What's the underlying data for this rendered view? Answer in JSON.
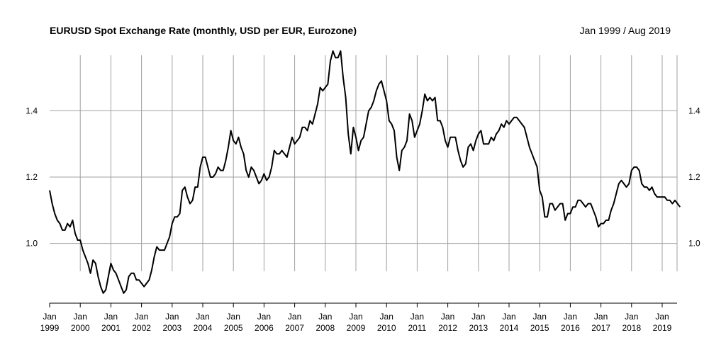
{
  "header": {
    "title": "EURUSD Spot Exchange Rate (monthly, USD per EUR, Eurozone)",
    "date_range": "Jan 1999 / Aug 2019"
  },
  "chart_data": {
    "type": "line",
    "title": "EURUSD Spot Exchange Rate (monthly, USD per EUR, Eurozone)",
    "subtitle": "Jan 1999 / Aug 2019",
    "xlabel": "",
    "ylabel": "",
    "start": "1999-01",
    "ylim": [
      0.82,
      1.58
    ],
    "y_ticks": [
      1.0,
      1.2,
      1.4
    ],
    "y_tick_labels": [
      "1.0",
      "1.2",
      "1.4"
    ],
    "x_ticks": [
      {
        "month": "Jan",
        "year": "1999"
      },
      {
        "month": "Jan",
        "year": "2000"
      },
      {
        "month": "Jan",
        "year": "2001"
      },
      {
        "month": "Jan",
        "year": "2002"
      },
      {
        "month": "Jan",
        "year": "2003"
      },
      {
        "month": "Jan",
        "year": "2004"
      },
      {
        "month": "Jan",
        "year": "2005"
      },
      {
        "month": "Jan",
        "year": "2006"
      },
      {
        "month": "Jan",
        "year": "2007"
      },
      {
        "month": "Jan",
        "year": "2008"
      },
      {
        "month": "Jan",
        "year": "2009"
      },
      {
        "month": "Jan",
        "year": "2010"
      },
      {
        "month": "Jan",
        "year": "2011"
      },
      {
        "month": "Jan",
        "year": "2012"
      },
      {
        "month": "Jan",
        "year": "2013"
      },
      {
        "month": "Jan",
        "year": "2014"
      },
      {
        "month": "Jan",
        "year": "2015"
      },
      {
        "month": "Jan",
        "year": "2016"
      },
      {
        "month": "Jan",
        "year": "2017"
      },
      {
        "month": "Jan",
        "year": "2018"
      },
      {
        "month": "Jan",
        "year": "2019"
      }
    ],
    "grid": true,
    "legend": "none",
    "line_color": "#000000",
    "grid_color": "#a0a0a0",
    "series": [
      {
        "values": [
          1.16,
          1.12,
          1.09,
          1.07,
          1.06,
          1.04,
          1.04,
          1.06,
          1.05,
          1.07,
          1.03,
          1.01,
          1.01,
          0.98,
          0.96,
          0.94,
          0.91,
          0.95,
          0.94,
          0.9,
          0.87,
          0.85,
          0.86,
          0.9,
          0.94,
          0.92,
          0.91,
          0.89,
          0.87,
          0.85,
          0.86,
          0.9,
          0.91,
          0.91,
          0.89,
          0.89,
          0.88,
          0.87,
          0.88,
          0.89,
          0.92,
          0.96,
          0.99,
          0.98,
          0.98,
          0.98,
          1.0,
          1.02,
          1.06,
          1.08,
          1.08,
          1.09,
          1.16,
          1.17,
          1.14,
          1.12,
          1.13,
          1.17,
          1.17,
          1.23,
          1.26,
          1.26,
          1.23,
          1.2,
          1.2,
          1.21,
          1.23,
          1.22,
          1.22,
          1.25,
          1.29,
          1.34,
          1.31,
          1.3,
          1.32,
          1.29,
          1.27,
          1.22,
          1.2,
          1.23,
          1.22,
          1.2,
          1.18,
          1.19,
          1.21,
          1.19,
          1.2,
          1.23,
          1.28,
          1.27,
          1.27,
          1.28,
          1.27,
          1.26,
          1.29,
          1.32,
          1.3,
          1.31,
          1.32,
          1.35,
          1.35,
          1.34,
          1.37,
          1.36,
          1.39,
          1.42,
          1.47,
          1.46,
          1.47,
          1.48,
          1.55,
          1.58,
          1.56,
          1.56,
          1.58,
          1.5,
          1.44,
          1.33,
          1.27,
          1.35,
          1.32,
          1.28,
          1.31,
          1.32,
          1.36,
          1.4,
          1.41,
          1.43,
          1.46,
          1.48,
          1.49,
          1.46,
          1.43,
          1.37,
          1.36,
          1.34,
          1.26,
          1.22,
          1.28,
          1.29,
          1.31,
          1.39,
          1.37,
          1.32,
          1.34,
          1.36,
          1.4,
          1.45,
          1.43,
          1.44,
          1.43,
          1.44,
          1.37,
          1.37,
          1.35,
          1.31,
          1.29,
          1.32,
          1.32,
          1.32,
          1.28,
          1.25,
          1.23,
          1.24,
          1.29,
          1.3,
          1.28,
          1.31,
          1.33,
          1.34,
          1.3,
          1.3,
          1.3,
          1.32,
          1.31,
          1.33,
          1.34,
          1.36,
          1.35,
          1.37,
          1.36,
          1.37,
          1.38,
          1.38,
          1.37,
          1.36,
          1.35,
          1.32,
          1.29,
          1.27,
          1.25,
          1.23,
          1.16,
          1.14,
          1.08,
          1.08,
          1.12,
          1.12,
          1.1,
          1.11,
          1.12,
          1.12,
          1.07,
          1.09,
          1.09,
          1.11,
          1.11,
          1.13,
          1.13,
          1.12,
          1.11,
          1.12,
          1.12,
          1.1,
          1.08,
          1.05,
          1.06,
          1.06,
          1.07,
          1.07,
          1.1,
          1.12,
          1.15,
          1.18,
          1.19,
          1.18,
          1.17,
          1.18,
          1.22,
          1.23,
          1.23,
          1.22,
          1.18,
          1.17,
          1.17,
          1.16,
          1.17,
          1.15,
          1.14,
          1.14,
          1.14,
          1.14,
          1.13,
          1.13,
          1.12,
          1.13,
          1.12,
          1.11
        ]
      }
    ]
  }
}
